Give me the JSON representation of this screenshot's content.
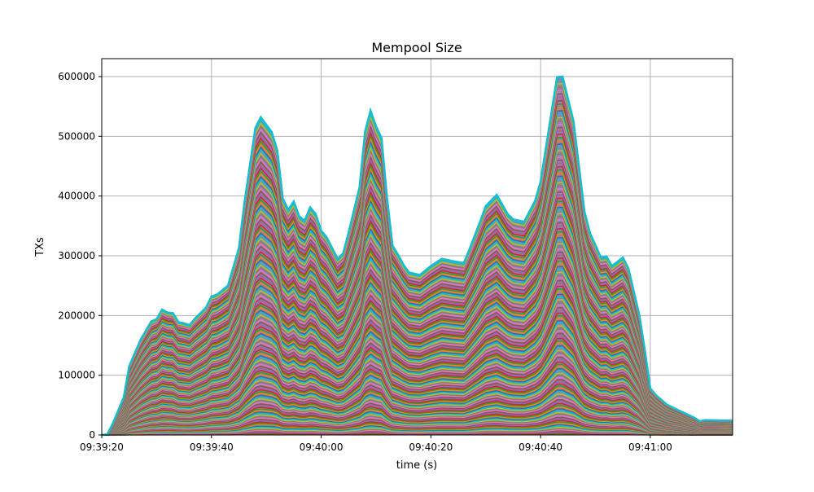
{
  "chart_data": {
    "type": "area",
    "stacked": true,
    "title": "Mempool Size",
    "xlabel": "time (s)",
    "ylabel": "TXs",
    "xlim": [
      "09:39:20",
      "09:41:15"
    ],
    "ylim": [
      0,
      630000
    ],
    "grid": true,
    "x_ticks": [
      "09:39:20",
      "09:39:40",
      "09:40:00",
      "09:40:20",
      "09:40:40",
      "09:41:00"
    ],
    "y_ticks": [
      "0",
      "100000",
      "200000",
      "300000",
      "400000",
      "500000",
      "600000"
    ],
    "colors": [
      "#1f77b4",
      "#ff7f0e",
      "#2ca02c",
      "#d62728",
      "#9467bd",
      "#8c564b",
      "#e377c2",
      "#7f7f7f",
      "#bcbd22",
      "#17becf"
    ],
    "total": {
      "x": [
        "09:39:20",
        "09:39:21",
        "09:39:22",
        "09:39:24",
        "09:39:25",
        "09:39:27",
        "09:39:29",
        "09:39:30",
        "09:39:31",
        "09:39:32",
        "09:39:33",
        "09:39:34",
        "09:39:35",
        "09:39:36",
        "09:39:37",
        "09:39:39",
        "09:39:40",
        "09:39:41",
        "09:39:43",
        "09:39:45",
        "09:39:46",
        "09:39:48",
        "09:39:49",
        "09:39:51",
        "09:39:52",
        "09:39:53",
        "09:39:54",
        "09:39:55",
        "09:39:56",
        "09:39:57",
        "09:39:58",
        "09:39:59",
        "09:40:00",
        "09:40:01",
        "09:40:03",
        "09:40:04",
        "09:40:05",
        "09:40:07",
        "09:40:08",
        "09:40:09",
        "09:40:10",
        "09:40:11",
        "09:40:12",
        "09:40:13",
        "09:40:14",
        "09:40:15",
        "09:40:16",
        "09:40:18",
        "09:40:20",
        "09:40:22",
        "09:40:24",
        "09:40:26",
        "09:40:27",
        "09:40:29",
        "09:40:30",
        "09:40:32",
        "09:40:34",
        "09:40:35",
        "09:40:37",
        "09:40:39",
        "09:40:40",
        "09:40:43",
        "09:40:44",
        "09:40:46",
        "09:40:48",
        "09:40:49",
        "09:40:51",
        "09:40:52",
        "09:40:53",
        "09:40:55",
        "09:40:56",
        "09:40:58",
        "09:40:59",
        "09:41:00",
        "09:41:01",
        "09:41:03",
        "09:41:05",
        "09:41:08",
        "09:41:09",
        "09:41:10",
        "09:41:15"
      ],
      "y": [
        0,
        1000,
        19000,
        63000,
        115000,
        158000,
        190000,
        194000,
        210000,
        205000,
        204000,
        189000,
        187000,
        184000,
        195000,
        213000,
        232000,
        235000,
        250000,
        313000,
        388000,
        514000,
        532000,
        507000,
        476000,
        396000,
        377000,
        391000,
        366000,
        359000,
        381000,
        370000,
        342000,
        331000,
        295000,
        304000,
        339000,
        415000,
        508000,
        543000,
        517000,
        497000,
        398000,
        317000,
        302000,
        285000,
        272000,
        268000,
        283000,
        295000,
        291000,
        288000,
        310000,
        358000,
        383000,
        402000,
        370000,
        361000,
        357000,
        392000,
        424000,
        599000,
        600000,
        525000,
        374000,
        338000,
        297000,
        299000,
        283000,
        297000,
        279000,
        201000,
        142000,
        78000,
        67000,
        51000,
        42000,
        29000,
        23000,
        25000,
        24000
      ]
    }
  }
}
